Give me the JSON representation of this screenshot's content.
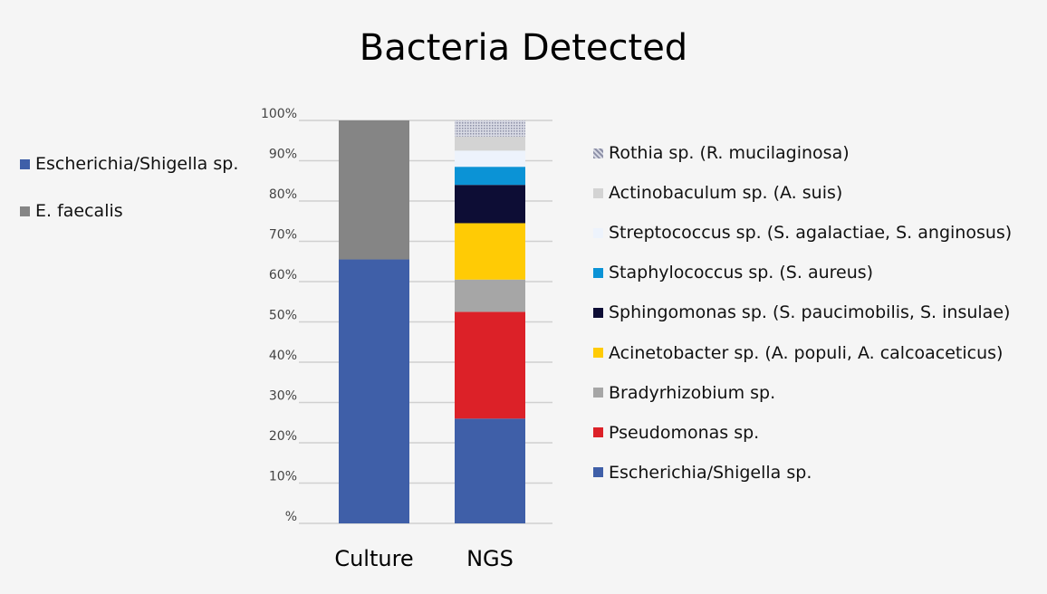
{
  "chart_data": {
    "type": "bar",
    "stacked": true,
    "title": "Bacteria Detected",
    "categories": [
      "Culture",
      "NGS"
    ],
    "y_ticks": [
      "%",
      "10%",
      "20%",
      "30%",
      "40%",
      "50%",
      "60%",
      "70%",
      "80%",
      "90%",
      "100%"
    ],
    "ylim": [
      0,
      100
    ],
    "grid": true,
    "series_groups": [
      {
        "category": "Culture",
        "legend_position": "left",
        "series": [
          {
            "name": "Escherichia/Shigella sp.",
            "value": 65.5,
            "color": "#3f5fa8"
          },
          {
            "name": "E. faecalis",
            "value": 34.5,
            "color": "#858585"
          }
        ]
      },
      {
        "category": "NGS",
        "legend_position": "right",
        "series": [
          {
            "name": "Escherichia/Shigella sp.",
            "value": 26,
            "color": "#3f5fa8"
          },
          {
            "name": "Pseudomonas sp.",
            "value": 26.5,
            "color": "#dc2128"
          },
          {
            "name": "Bradyrhizobium sp.",
            "value": 8,
            "color": "#a6a6a6"
          },
          {
            "name": "Acinetobacter sp. (A. populi, A. calcoaceticus)",
            "value": 14,
            "color": "#ffcb05"
          },
          {
            "name": "Sphingomonas sp. (S. paucimobilis, S. insulae)",
            "value": 9.5,
            "color": "#0d0d35"
          },
          {
            "name": "Staphylococcus sp. (S. aureus)",
            "value": 4.5,
            "color": "#0b93d6"
          },
          {
            "name": "Streptococcus sp. (S. agalactiae, S. anginosus)",
            "value": 4,
            "color": "#edf3fc"
          },
          {
            "name": "Actinobaculum sp. (A. suis)",
            "value": 3.5,
            "color": "#d3d3d3"
          },
          {
            "name": "Rothia sp. (R. mucilaginosa)",
            "value": 4,
            "color": "#b6b8c8",
            "pattern": "dotted"
          }
        ]
      }
    ]
  }
}
